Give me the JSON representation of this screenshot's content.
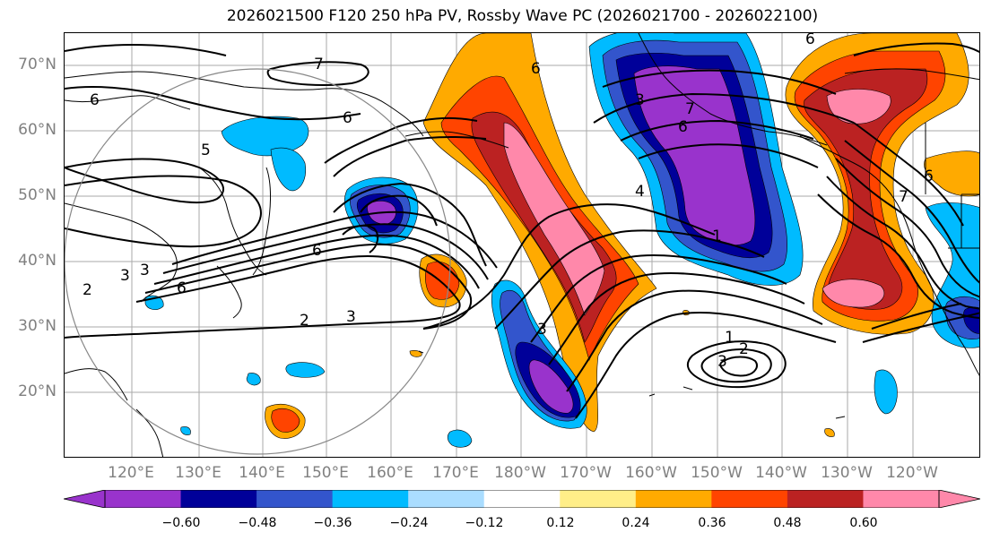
{
  "title": "2026021500 F120 250 hPa PV, Rossby Wave PC (2026021700 - 2026022100)",
  "lat_labels": [
    "70°N",
    "60°N",
    "50°N",
    "40°N",
    "30°N",
    "20°N"
  ],
  "lon_labels": [
    "120°E",
    "130°E",
    "140°E",
    "150°E",
    "160°E",
    "170°E",
    "180°W",
    "170°W",
    "160°W",
    "150°W",
    "140°W",
    "130°W",
    "120°W"
  ],
  "contour_labels": [
    "7",
    "6",
    "6",
    "5",
    "6",
    "6",
    "3",
    "2",
    "6",
    "3",
    "2",
    "3",
    "7",
    "6",
    "6",
    "4",
    "1",
    "1",
    "2",
    "3",
    "6",
    "7",
    "3",
    "3"
  ],
  "colorbar": {
    "colors": [
      "#9933cc",
      "#000099",
      "#3355cc",
      "#00bbff",
      "#aaddff",
      "#ffffff",
      "#ffee88",
      "#ffaa00",
      "#ff4400",
      "#bb2222",
      "#ff88aa"
    ],
    "under_color": "#9933cc",
    "over_color": "#ff88aa",
    "tick_labels": [
      "−0.60",
      "−0.48",
      "−0.36",
      "−0.24",
      "−0.12",
      "0.12",
      "0.24",
      "0.36",
      "0.48",
      "0.60"
    ]
  }
}
